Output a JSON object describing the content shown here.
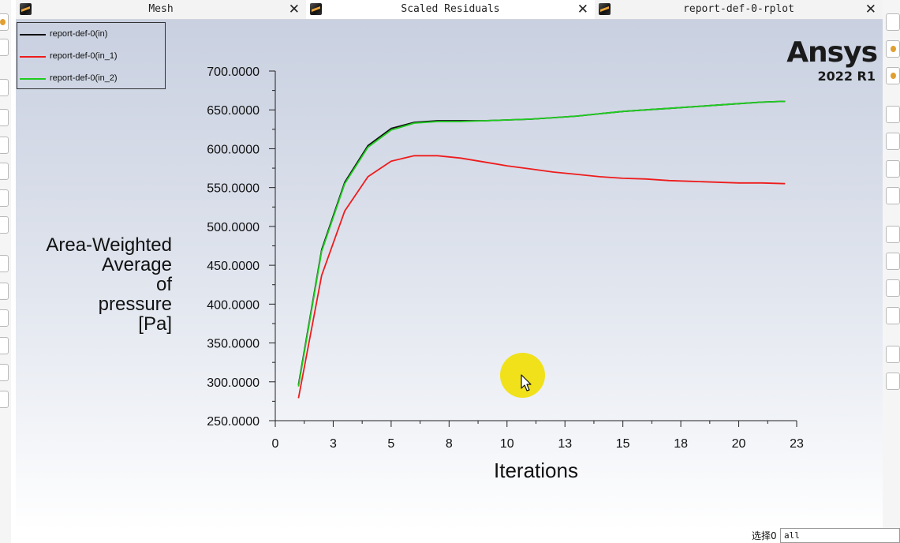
{
  "tabs": [
    {
      "label": "Mesh",
      "close": "✕",
      "icon": "fluent-graphics-icon"
    },
    {
      "label": "Scaled Residuals",
      "close": "✕",
      "icon": "fluent-graphics-icon"
    },
    {
      "label": "report-def-0-rplot",
      "close": "✕",
      "icon": "fluent-graphics-icon"
    }
  ],
  "logo": {
    "brand": "Ansys",
    "version": "2022 R1"
  },
  "legend": [
    {
      "name": "report-def-0(in)",
      "color": "#111111"
    },
    {
      "name": "report-def-0(in_1)",
      "color": "#ee1c1c"
    },
    {
      "name": "report-def-0(in_2)",
      "color": "#1fcc1f"
    }
  ],
  "ylabel_lines": [
    "Area-Weighted",
    "Average",
    "of",
    "pressure",
    "[Pa]"
  ],
  "chart_data": {
    "type": "line",
    "xlabel": "Iterations",
    "ylabel": "Area-Weighted Average of pressure [Pa]",
    "x_ticks": [
      "0",
      "3",
      "5",
      "8",
      "10",
      "13",
      "15",
      "18",
      "20",
      "23"
    ],
    "y_ticks": [
      "250.0000",
      "300.0000",
      "350.0000",
      "400.0000",
      "450.0000",
      "500.0000",
      "550.0000",
      "600.0000",
      "650.0000",
      "700.0000"
    ],
    "xlim": [
      0,
      22.5
    ],
    "ylim": [
      250,
      700
    ],
    "grid": false,
    "legend_position": "top-left",
    "x": [
      1,
      2,
      3,
      4,
      5,
      6,
      7,
      8,
      9,
      10,
      11,
      12,
      13,
      14,
      15,
      16,
      17,
      18,
      19,
      20,
      21,
      22
    ],
    "series": [
      {
        "name": "report-def-0(in)",
        "color": "#111111",
        "values": [
          296,
          470,
          557,
          604,
          626,
          634,
          636,
          636,
          636,
          637,
          638,
          640,
          642,
          645,
          648,
          650,
          652,
          654,
          656,
          658,
          660,
          661
        ]
      },
      {
        "name": "report-def-0(in_1)",
        "color": "#ee1c1c",
        "values": [
          279,
          437,
          520,
          564,
          584,
          591,
          591,
          588,
          583,
          578,
          574,
          570,
          567,
          564,
          562,
          561,
          559,
          558,
          557,
          556,
          556,
          555
        ]
      },
      {
        "name": "report-def-0(in_2)",
        "color": "#1fcc1f",
        "values": [
          294,
          468,
          555,
          602,
          624,
          633,
          635,
          635,
          636,
          637,
          638,
          640,
          642,
          645,
          648,
          650,
          652,
          654,
          656,
          658,
          660,
          661
        ]
      }
    ]
  },
  "selector": {
    "label": "选择0",
    "value": "all"
  }
}
